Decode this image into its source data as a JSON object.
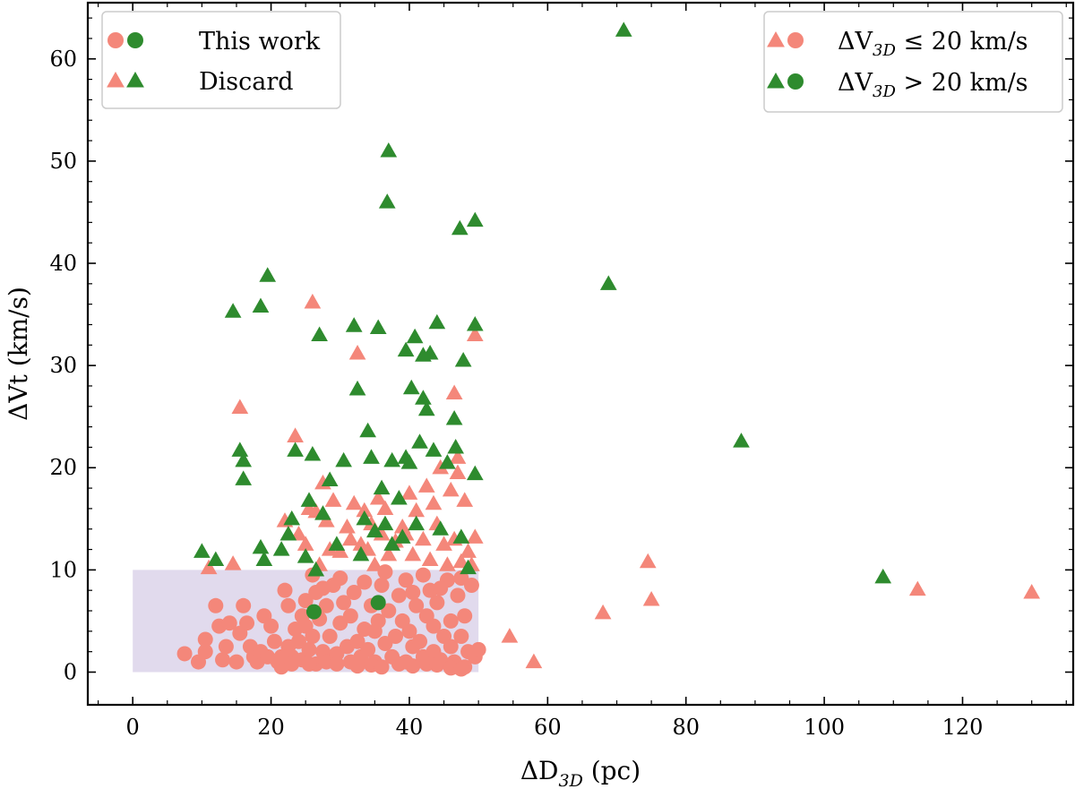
{
  "chart_data": {
    "type": "scatter",
    "xlabel": "ΔD₃D (pc)",
    "ylabel": "ΔVt (km/s)",
    "xlim": [
      -6.5,
      136
    ],
    "ylim": [
      -3.2,
      65.5
    ],
    "xticks": [
      "0",
      "20",
      "40",
      "60",
      "80",
      "100",
      "120"
    ],
    "yticks": [
      "0",
      "10",
      "20",
      "30",
      "40",
      "50",
      "60"
    ],
    "xtick_values": [
      0,
      20,
      40,
      60,
      80,
      100,
      120
    ],
    "ytick_values": [
      0,
      10,
      20,
      30,
      40,
      50,
      60
    ],
    "grid": false,
    "region": {
      "x": [
        0,
        50
      ],
      "y": [
        0,
        10
      ],
      "color": "#dcd3ea"
    },
    "colors": {
      "salmon": "#f4877a",
      "green": "#2e8b2e"
    },
    "legend_markers": {
      "position": "upper-left",
      "entries": [
        {
          "label": "This work",
          "markers": [
            "circle",
            "circle"
          ],
          "colors": [
            "salmon",
            "green"
          ]
        },
        {
          "label": "Discard",
          "markers": [
            "triangle",
            "triangle"
          ],
          "colors": [
            "salmon",
            "green"
          ]
        }
      ]
    },
    "legend_colors": {
      "position": "upper-right",
      "entries": [
        {
          "label": "ΔV₃D ≤ 20 km/s",
          "markers": [
            "triangle",
            "circle"
          ],
          "colors": [
            "salmon",
            "salmon"
          ]
        },
        {
          "label": "ΔV₃D > 20 km/s",
          "markers": [
            "triangle",
            "circle"
          ],
          "colors": [
            "green",
            "green"
          ]
        }
      ]
    },
    "series": [
      {
        "marker": "circle",
        "color": "salmon",
        "points": [
          [
            7.5,
            1.8
          ],
          [
            9.5,
            1.0
          ],
          [
            10.5,
            3.2
          ],
          [
            10.5,
            2.0
          ],
          [
            12.0,
            6.5
          ],
          [
            12.5,
            4.5
          ],
          [
            13.0,
            1.2
          ],
          [
            13.5,
            2.5
          ],
          [
            14.0,
            4.8
          ],
          [
            15.0,
            1.0
          ],
          [
            15.5,
            3.8
          ],
          [
            16.0,
            6.5
          ],
          [
            16.5,
            4.8
          ],
          [
            17.0,
            2.5
          ],
          [
            17.5,
            1.5
          ],
          [
            18.0,
            1.0
          ],
          [
            18.5,
            2.0
          ],
          [
            19.0,
            5.5
          ],
          [
            19.5,
            1.5
          ],
          [
            20.0,
            4.5
          ],
          [
            20.5,
            3.0
          ],
          [
            21.0,
            1.0
          ],
          [
            21.5,
            0.5
          ],
          [
            22.0,
            8.0
          ],
          [
            22.5,
            6.5
          ],
          [
            22.5,
            2.5
          ],
          [
            23.0,
            1.5
          ],
          [
            23.5,
            4.2
          ],
          [
            24.0,
            3.0
          ],
          [
            24.5,
            5.5
          ],
          [
            24.5,
            1.2
          ],
          [
            25.0,
            7.0
          ],
          [
            25.0,
            4.5
          ],
          [
            25.5,
            2.2
          ],
          [
            26.0,
            3.5
          ],
          [
            26.5,
            0.8
          ],
          [
            26.5,
            7.8
          ],
          [
            27.0,
            5.2
          ],
          [
            27.5,
            2.0
          ],
          [
            28.0,
            1.0
          ],
          [
            28.0,
            6.5
          ],
          [
            28.5,
            3.5
          ],
          [
            29.0,
            8.5
          ],
          [
            29.5,
            1.8
          ],
          [
            30.0,
            4.8
          ],
          [
            30.5,
            6.8
          ],
          [
            31.0,
            2.5
          ],
          [
            31.5,
            1.0
          ],
          [
            31.5,
            5.5
          ],
          [
            32.0,
            7.8
          ],
          [
            32.5,
            3.0
          ],
          [
            33.0,
            1.5
          ],
          [
            33.5,
            4.2
          ],
          [
            34.0,
            2.2
          ],
          [
            34.5,
            6.5
          ],
          [
            35.0,
            1.0
          ],
          [
            35.0,
            4.0
          ],
          [
            35.5,
            5.0
          ],
          [
            36.0,
            8.5
          ],
          [
            36.5,
            2.8
          ],
          [
            37.0,
            6.0
          ],
          [
            37.5,
            1.5
          ],
          [
            38.0,
            3.5
          ],
          [
            38.5,
            7.5
          ],
          [
            39.0,
            5.0
          ],
          [
            39.5,
            1.0
          ],
          [
            40.0,
            4.0
          ],
          [
            40.5,
            2.5
          ],
          [
            40.5,
            7.8
          ],
          [
            41.0,
            6.5
          ],
          [
            41.5,
            3.0
          ],
          [
            42.0,
            1.5
          ],
          [
            42.5,
            5.5
          ],
          [
            43.0,
            8.0
          ],
          [
            43.5,
            2.0
          ],
          [
            43.5,
            4.5
          ],
          [
            44.0,
            6.8
          ],
          [
            44.5,
            1.2
          ],
          [
            45.0,
            3.5
          ],
          [
            45.5,
            9.0
          ],
          [
            46.0,
            5.0
          ],
          [
            46.0,
            2.5
          ],
          [
            46.5,
            1.0
          ],
          [
            47.0,
            7.5
          ],
          [
            47.5,
            3.5
          ],
          [
            48.0,
            0.5
          ],
          [
            48.0,
            5.5
          ],
          [
            48.5,
            2.0
          ],
          [
            49.0,
            8.5
          ],
          [
            49.5,
            1.5
          ],
          [
            50.0,
            2.2
          ],
          [
            26.0,
            9.5
          ],
          [
            27.5,
            8.2
          ],
          [
            30.0,
            9.2
          ],
          [
            33.5,
            8.8
          ],
          [
            36.5,
            9.8
          ],
          [
            39.5,
            9.0
          ],
          [
            42.0,
            9.5
          ],
          [
            44.5,
            8.2
          ],
          [
            47.5,
            9.2
          ],
          [
            21.5,
            1.5
          ],
          [
            23.0,
            0.8
          ],
          [
            25.5,
            0.8
          ],
          [
            29.5,
            0.8
          ],
          [
            32.5,
            0.6
          ],
          [
            34.5,
            0.7
          ],
          [
            36.0,
            0.5
          ],
          [
            38.5,
            0.8
          ],
          [
            40.5,
            0.6
          ],
          [
            42.5,
            0.8
          ],
          [
            44.0,
            0.7
          ],
          [
            46.0,
            0.4
          ],
          [
            47.5,
            0.3
          ]
        ]
      },
      {
        "marker": "circle",
        "color": "green",
        "points": [
          [
            26.2,
            5.9
          ],
          [
            35.5,
            6.8
          ]
        ]
      },
      {
        "marker": "triangle",
        "color": "salmon",
        "points": [
          [
            11.0,
            10.2
          ],
          [
            14.5,
            10.6
          ],
          [
            15.5,
            25.9
          ],
          [
            22.0,
            14.8
          ],
          [
            23.5,
            23.1
          ],
          [
            24.0,
            13.5
          ],
          [
            25.0,
            12.5
          ],
          [
            25.5,
            16.0
          ],
          [
            26.0,
            36.2
          ],
          [
            26.5,
            15.7
          ],
          [
            27.0,
            10.5
          ],
          [
            27.5,
            18.5
          ],
          [
            28.0,
            14.8
          ],
          [
            28.5,
            12.0
          ],
          [
            29.0,
            16.8
          ],
          [
            30.0,
            11.8
          ],
          [
            31.0,
            14.2
          ],
          [
            31.5,
            13.0
          ],
          [
            32.0,
            16.5
          ],
          [
            32.5,
            31.2
          ],
          [
            33.0,
            12.5
          ],
          [
            33.5,
            15.8
          ],
          [
            34.0,
            12.0
          ],
          [
            34.5,
            14.5
          ],
          [
            35.0,
            10.5
          ],
          [
            35.5,
            17.0
          ],
          [
            36.0,
            13.5
          ],
          [
            36.5,
            16.0
          ],
          [
            37.0,
            11.5
          ],
          [
            38.0,
            12.8
          ],
          [
            39.0,
            14.2
          ],
          [
            39.5,
            13.5
          ],
          [
            40.0,
            17.5
          ],
          [
            40.5,
            11.5
          ],
          [
            41.0,
            15.8
          ],
          [
            42.0,
            13.0
          ],
          [
            42.5,
            18.2
          ],
          [
            43.0,
            11.0
          ],
          [
            43.5,
            16.5
          ],
          [
            44.0,
            14.5
          ],
          [
            44.5,
            20.0
          ],
          [
            45.0,
            12.5
          ],
          [
            45.5,
            10.5
          ],
          [
            46.0,
            17.8
          ],
          [
            46.5,
            27.3
          ],
          [
            46.5,
            13.0
          ],
          [
            47.0,
            21.0
          ],
          [
            47.0,
            19.5
          ],
          [
            47.5,
            10.8
          ],
          [
            48.0,
            16.8
          ],
          [
            48.5,
            11.8
          ],
          [
            49.0,
            10.5
          ],
          [
            49.5,
            33.0
          ],
          [
            49.5,
            13.2
          ],
          [
            54.5,
            3.5
          ],
          [
            58.0,
            1.0
          ],
          [
            68.0,
            5.8
          ],
          [
            74.5,
            10.8
          ],
          [
            75.0,
            7.1
          ],
          [
            113.5,
            8.1
          ],
          [
            130.0,
            7.8
          ]
        ]
      },
      {
        "marker": "triangle",
        "color": "green",
        "points": [
          [
            10.0,
            11.8
          ],
          [
            12.0,
            11.0
          ],
          [
            14.5,
            35.3
          ],
          [
            15.5,
            21.7
          ],
          [
            16.0,
            20.7
          ],
          [
            16.0,
            18.9
          ],
          [
            18.5,
            35.8
          ],
          [
            18.5,
            12.2
          ],
          [
            19.0,
            11.0
          ],
          [
            19.5,
            38.8
          ],
          [
            21.5,
            12.0
          ],
          [
            22.5,
            13.5
          ],
          [
            23.0,
            15.0
          ],
          [
            23.5,
            21.7
          ],
          [
            25.0,
            11.3
          ],
          [
            25.5,
            16.8
          ],
          [
            26.0,
            21.3
          ],
          [
            26.5,
            10.0
          ],
          [
            27.0,
            33.0
          ],
          [
            27.5,
            15.5
          ],
          [
            28.5,
            18.8
          ],
          [
            29.5,
            12.5
          ],
          [
            30.5,
            20.7
          ],
          [
            32.0,
            33.9
          ],
          [
            32.5,
            27.7
          ],
          [
            33.0,
            11.5
          ],
          [
            33.5,
            15.0
          ],
          [
            34.0,
            23.6
          ],
          [
            34.5,
            21.0
          ],
          [
            35.0,
            13.8
          ],
          [
            35.5,
            33.7
          ],
          [
            36.0,
            18.0
          ],
          [
            36.5,
            14.5
          ],
          [
            37.0,
            51.0
          ],
          [
            36.8,
            46.0
          ],
          [
            37.5,
            20.7
          ],
          [
            37.5,
            12.5
          ],
          [
            38.5,
            17.0
          ],
          [
            39.0,
            13.2
          ],
          [
            39.5,
            31.5
          ],
          [
            39.5,
            21.0
          ],
          [
            40.0,
            20.5
          ],
          [
            40.3,
            27.8
          ],
          [
            40.8,
            32.8
          ],
          [
            41.0,
            14.5
          ],
          [
            41.5,
            22.5
          ],
          [
            42.0,
            26.8
          ],
          [
            42.0,
            31.0
          ],
          [
            42.5,
            25.7
          ],
          [
            43.0,
            31.2
          ],
          [
            43.5,
            21.7
          ],
          [
            44.0,
            34.2
          ],
          [
            44.5,
            14.0
          ],
          [
            45.5,
            20.5
          ],
          [
            46.5,
            24.8
          ],
          [
            46.7,
            22.0
          ],
          [
            47.3,
            43.4
          ],
          [
            47.5,
            13.2
          ],
          [
            47.8,
            30.5
          ],
          [
            48.5,
            10.2
          ],
          [
            49.5,
            44.2
          ],
          [
            49.5,
            34.0
          ],
          [
            49.5,
            19.4
          ],
          [
            68.8,
            38.0
          ],
          [
            71.0,
            62.8
          ],
          [
            88.0,
            22.6
          ],
          [
            108.5,
            9.3
          ]
        ]
      }
    ]
  }
}
